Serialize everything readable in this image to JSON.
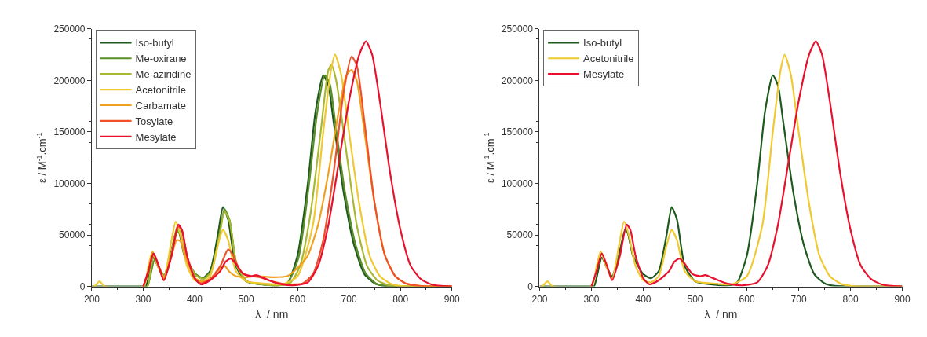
{
  "chart_data": [
    {
      "type": "line",
      "xlabel": "λ  / nm",
      "ylabel": "ε / M$^{-1}$.cm$^{-1}$",
      "xlim": [
        200,
        900
      ],
      "xticks": [
        200,
        300,
        400,
        500,
        600,
        700,
        800,
        900
      ],
      "ylim": [
        0,
        250000
      ],
      "yticks": [
        0,
        50000,
        100000,
        150000,
        200000,
        250000
      ],
      "grid": false,
      "legend": "top left",
      "marker": "none",
      "line_style": "solid",
      "series": [
        {
          "name": "Iso-butyl",
          "color": "#1e5a1e",
          "x": [
            200,
            300,
            305,
            320,
            330,
            340,
            355,
            365,
            370,
            380,
            400,
            415,
            430,
            445,
            455,
            465,
            480,
            500,
            530,
            560,
            580,
            600,
            620,
            635,
            650,
            660,
            670,
            690,
            710,
            730,
            750,
            770,
            800,
            900
          ],
          "values": [
            0,
            0,
            0,
            28000,
            18000,
            10000,
            35000,
            55000,
            52000,
            30000,
            12000,
            8000,
            15000,
            50000,
            77000,
            65000,
            20000,
            5000,
            2000,
            1000,
            3000,
            30000,
            100000,
            170000,
            205000,
            195000,
            160000,
            90000,
            40000,
            12000,
            3000,
            500,
            0,
            0
          ]
        },
        {
          "name": "Me-oxirane",
          "color": "#5a8c28",
          "x": [
            300,
            308,
            322,
            332,
            342,
            357,
            366,
            372,
            382,
            402,
            417,
            432,
            447,
            458,
            468,
            482,
            502,
            530,
            560,
            580,
            602,
            622,
            638,
            653,
            663,
            673,
            692,
            712,
            732,
            752,
            772,
            800,
            900
          ],
          "values": [
            0,
            0,
            26000,
            17000,
            10000,
            34000,
            54000,
            51000,
            29000,
            12000,
            8000,
            15000,
            48000,
            75000,
            64000,
            20000,
            5000,
            2000,
            1000,
            3000,
            28000,
            98000,
            168000,
            205000,
            196000,
            160000,
            92000,
            42000,
            13000,
            3000,
            500,
            0,
            0
          ]
        },
        {
          "name": "Me-aziridine",
          "color": "#a8b830",
          "x": [
            300,
            308,
            320,
            330,
            342,
            357,
            366,
            372,
            382,
            402,
            417,
            432,
            447,
            458,
            468,
            482,
            502,
            530,
            560,
            585,
            605,
            625,
            645,
            660,
            666,
            675,
            695,
            715,
            735,
            755,
            775,
            800,
            900
          ],
          "values": [
            0,
            0,
            30000,
            19000,
            9000,
            38000,
            58000,
            53000,
            29000,
            11000,
            7000,
            14000,
            46000,
            73000,
            63000,
            20000,
            5000,
            2000,
            1000,
            3000,
            20000,
            70000,
            150000,
            210000,
            215000,
            200000,
            130000,
            60000,
            20000,
            6000,
            1500,
            0,
            0
          ]
        },
        {
          "name": "Acetonitrile",
          "color": "#f0c830",
          "x": [
            200,
            205,
            215,
            225,
            300,
            310,
            318,
            328,
            340,
            355,
            363,
            372,
            385,
            400,
            415,
            430,
            445,
            455,
            465,
            480,
            500,
            530,
            570,
            600,
            630,
            650,
            665,
            673,
            685,
            700,
            720,
            740,
            760,
            780,
            800,
            820,
            900
          ],
          "values": [
            0,
            0,
            5000,
            0,
            0,
            20000,
            34000,
            20000,
            8000,
            45000,
            63000,
            50000,
            20000,
            6000,
            4000,
            10000,
            40000,
            55000,
            45000,
            15000,
            5000,
            3000,
            2000,
            10000,
            60000,
            150000,
            210000,
            225000,
            205000,
            150000,
            80000,
            30000,
            10000,
            3000,
            500,
            0,
            0
          ]
        },
        {
          "name": "Carbamate",
          "color": "#f0a020",
          "x": [
            300,
            308,
            318,
            328,
            340,
            355,
            365,
            372,
            385,
            400,
            415,
            430,
            445,
            458,
            468,
            480,
            500,
            520,
            550,
            580,
            600,
            620,
            640,
            660,
            680,
            695,
            705,
            715,
            730,
            750,
            770,
            790,
            810,
            830,
            850,
            900
          ],
          "values": [
            0,
            10000,
            33000,
            22000,
            9000,
            30000,
            45000,
            44000,
            25000,
            8000,
            5000,
            7000,
            15000,
            20000,
            14000,
            10000,
            9000,
            10000,
            9000,
            10000,
            18000,
            30000,
            60000,
            110000,
            170000,
            205000,
            210000,
            200000,
            150000,
            80000,
            30000,
            10000,
            3000,
            1000,
            0,
            0
          ]
        },
        {
          "name": "Tosylate",
          "color": "#f05028",
          "x": [
            300,
            310,
            320,
            330,
            340,
            355,
            368,
            375,
            385,
            400,
            412,
            430,
            450,
            465,
            475,
            490,
            510,
            525,
            550,
            580,
            610,
            630,
            650,
            670,
            690,
            705,
            715,
            730,
            750,
            770,
            790,
            810,
            830,
            850,
            900
          ],
          "values": [
            0,
            15000,
            32000,
            20000,
            6000,
            30000,
            58000,
            55000,
            30000,
            8000,
            3000,
            7000,
            20000,
            36000,
            30000,
            14000,
            10000,
            9000,
            5000,
            2000,
            3000,
            12000,
            45000,
            110000,
            190000,
            223000,
            215000,
            160000,
            80000,
            30000,
            10000,
            3000,
            1000,
            0,
            0
          ]
        },
        {
          "name": "Mesylate",
          "color": "#e8102c",
          "x": [
            300,
            310,
            320,
            330,
            340,
            355,
            368,
            375,
            385,
            400,
            412,
            430,
            450,
            460,
            470,
            480,
            495,
            510,
            520,
            535,
            560,
            590,
            620,
            640,
            660,
            680,
            700,
            720,
            733,
            745,
            760,
            780,
            800,
            820,
            840,
            860,
            880,
            900
          ],
          "values": [
            0,
            15000,
            32000,
            20000,
            6000,
            30000,
            60000,
            55000,
            30000,
            8000,
            2000,
            6000,
            15000,
            24000,
            27000,
            22000,
            12000,
            10000,
            11000,
            8000,
            3000,
            1000,
            4000,
            20000,
            60000,
            120000,
            180000,
            225000,
            238000,
            225000,
            180000,
            110000,
            55000,
            20000,
            7000,
            2000,
            500,
            0
          ]
        }
      ]
    },
    {
      "type": "line",
      "xlabel": "λ  / nm",
      "ylabel": "ε / M$^{-1}$.cm$^{-1}$",
      "xlim": [
        200,
        900
      ],
      "xticks": [
        200,
        300,
        400,
        500,
        600,
        700,
        800,
        900
      ],
      "ylim": [
        0,
        250000
      ],
      "yticks": [
        0,
        50000,
        100000,
        150000,
        200000,
        250000
      ],
      "grid": false,
      "legend": "top left",
      "marker": "none",
      "line_style": "solid",
      "series": [
        {
          "name": "Iso-butyl",
          "color": "#1e5a1e",
          "x": [
            200,
            300,
            305,
            320,
            330,
            340,
            355,
            365,
            370,
            380,
            400,
            415,
            430,
            445,
            455,
            465,
            480,
            500,
            530,
            560,
            580,
            600,
            620,
            635,
            650,
            660,
            670,
            690,
            710,
            730,
            750,
            770,
            800,
            900
          ],
          "values": [
            0,
            0,
            0,
            28000,
            18000,
            10000,
            35000,
            55000,
            52000,
            30000,
            12000,
            8000,
            15000,
            50000,
            77000,
            65000,
            20000,
            5000,
            2000,
            1000,
            3000,
            30000,
            100000,
            170000,
            205000,
            195000,
            160000,
            90000,
            40000,
            12000,
            3000,
            500,
            0,
            0
          ]
        },
        {
          "name": "Acetonitrile",
          "color": "#f0c830",
          "x": [
            200,
            205,
            215,
            225,
            300,
            310,
            318,
            328,
            340,
            355,
            363,
            372,
            385,
            400,
            415,
            430,
            445,
            455,
            465,
            480,
            500,
            530,
            570,
            600,
            630,
            650,
            665,
            673,
            685,
            700,
            720,
            740,
            760,
            780,
            800,
            820,
            900
          ],
          "values": [
            0,
            0,
            5000,
            0,
            0,
            20000,
            34000,
            20000,
            8000,
            45000,
            63000,
            50000,
            20000,
            6000,
            4000,
            10000,
            40000,
            55000,
            45000,
            15000,
            5000,
            3000,
            2000,
            10000,
            60000,
            150000,
            210000,
            225000,
            205000,
            150000,
            80000,
            30000,
            10000,
            3000,
            500,
            0,
            0
          ]
        },
        {
          "name": "Mesylate",
          "color": "#e8102c",
          "x": [
            300,
            310,
            320,
            330,
            340,
            355,
            368,
            375,
            385,
            400,
            412,
            430,
            450,
            460,
            470,
            480,
            495,
            510,
            520,
            535,
            560,
            590,
            620,
            640,
            660,
            680,
            700,
            720,
            733,
            745,
            760,
            780,
            800,
            820,
            840,
            860,
            880,
            900
          ],
          "values": [
            0,
            15000,
            32000,
            20000,
            6000,
            30000,
            60000,
            55000,
            30000,
            8000,
            2000,
            6000,
            15000,
            24000,
            27000,
            22000,
            12000,
            10000,
            11000,
            8000,
            3000,
            1000,
            4000,
            20000,
            60000,
            120000,
            180000,
            225000,
            238000,
            225000,
            180000,
            110000,
            55000,
            20000,
            7000,
            2000,
            500,
            0
          ]
        }
      ]
    }
  ]
}
